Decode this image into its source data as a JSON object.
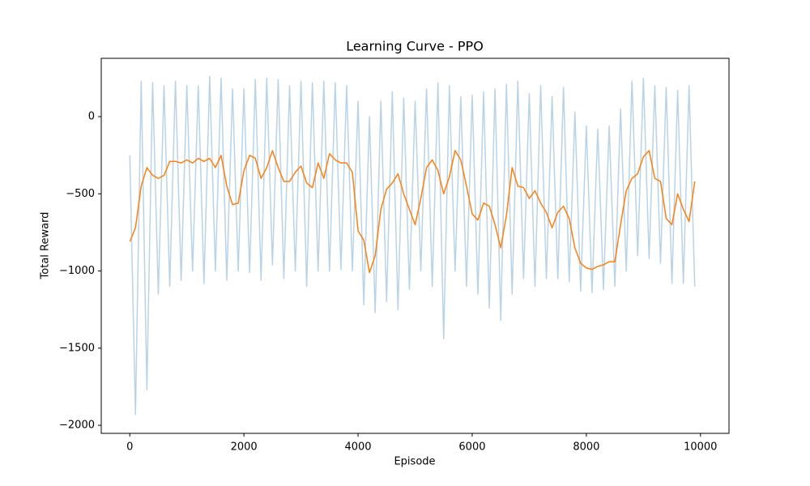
{
  "chart_data": {
    "type": "line",
    "title": "Learning Curve - PPO",
    "xlabel": "Episode",
    "ylabel": "Total Reward",
    "x": [
      0,
      100,
      200,
      300,
      400,
      500,
      600,
      700,
      800,
      900,
      1000,
      1100,
      1200,
      1300,
      1400,
      1500,
      1600,
      1700,
      1800,
      1900,
      2000,
      2100,
      2200,
      2300,
      2400,
      2500,
      2600,
      2700,
      2800,
      2900,
      3000,
      3100,
      3200,
      3300,
      3400,
      3500,
      3600,
      3700,
      3800,
      3900,
      4000,
      4100,
      4200,
      4300,
      4400,
      4500,
      4600,
      4700,
      4800,
      4900,
      5000,
      5100,
      5200,
      5300,
      5400,
      5500,
      5600,
      5700,
      5800,
      5900,
      6000,
      6100,
      6200,
      6300,
      6400,
      6500,
      6600,
      6700,
      6800,
      6900,
      7000,
      7100,
      7200,
      7300,
      7400,
      7500,
      7600,
      7700,
      7800,
      7900,
      8000,
      8100,
      8200,
      8300,
      8400,
      8500,
      8600,
      8700,
      8800,
      8900,
      9000,
      9100,
      9200,
      9300,
      9400,
      9500,
      9600,
      9700,
      9800,
      9900
    ],
    "series": [
      {
        "color": "#b8d3e8",
        "values": [
          -250,
          -1930,
          230,
          -1770,
          220,
          -1150,
          200,
          -1100,
          230,
          -1060,
          200,
          -1000,
          200,
          -1080,
          260,
          -1000,
          250,
          -1060,
          180,
          -1000,
          180,
          -1010,
          240,
          -1060,
          250,
          -960,
          240,
          -1050,
          200,
          -1000,
          230,
          -1100,
          220,
          -1000,
          230,
          -1000,
          220,
          -990,
          200,
          -1000,
          100,
          -1220,
          0,
          -1270,
          100,
          -1200,
          160,
          -1250,
          120,
          -1120,
          100,
          -1000,
          180,
          -1100,
          220,
          -1440,
          200,
          -1000,
          130,
          -1100,
          140,
          -1150,
          160,
          -1240,
          180,
          -1320,
          210,
          -1150,
          230,
          -1050,
          150,
          -1100,
          200,
          -1050,
          130,
          -1050,
          190,
          -1070,
          30,
          -1130,
          -60,
          -1140,
          -80,
          -1120,
          -60,
          -1100,
          50,
          -1000,
          230,
          -900,
          250,
          -920,
          200,
          -950,
          190,
          -1080,
          170,
          -1080,
          200,
          -1100
        ]
      },
      {
        "color": "#ff7f0e",
        "values": [
          -810,
          -720,
          -450,
          -330,
          -380,
          -400,
          -380,
          -290,
          -290,
          -300,
          -280,
          -300,
          -270,
          -290,
          -270,
          -330,
          -250,
          -450,
          -570,
          -560,
          -350,
          -250,
          -270,
          -400,
          -330,
          -220,
          -330,
          -420,
          -420,
          -360,
          -320,
          -430,
          -460,
          -300,
          -400,
          -240,
          -280,
          -300,
          -300,
          -360,
          -740,
          -800,
          -1010,
          -900,
          -600,
          -470,
          -430,
          -370,
          -500,
          -600,
          -700,
          -530,
          -330,
          -280,
          -350,
          -500,
          -390,
          -220,
          -280,
          -450,
          -630,
          -670,
          -560,
          -580,
          -700,
          -850,
          -640,
          -330,
          -450,
          -460,
          -530,
          -480,
          -560,
          -620,
          -720,
          -620,
          -580,
          -660,
          -850,
          -950,
          -980,
          -990,
          -970,
          -960,
          -940,
          -940,
          -700,
          -480,
          -400,
          -370,
          -260,
          -220,
          -400,
          -420,
          -660,
          -700,
          -500,
          -600,
          -680,
          -420
        ]
      }
    ],
    "xlim": [
      -500,
      10500
    ],
    "ylim": [
      -2052,
      378
    ],
    "xticks": [
      0,
      2000,
      4000,
      6000,
      8000,
      10000
    ],
    "yticks": [
      {
        "value": -2000,
        "label": "−2000"
      },
      {
        "value": -1500,
        "label": "−1500"
      },
      {
        "value": -1000,
        "label": "−1000"
      },
      {
        "value": -500,
        "label": "−500"
      },
      0
    ],
    "grid": false
  }
}
